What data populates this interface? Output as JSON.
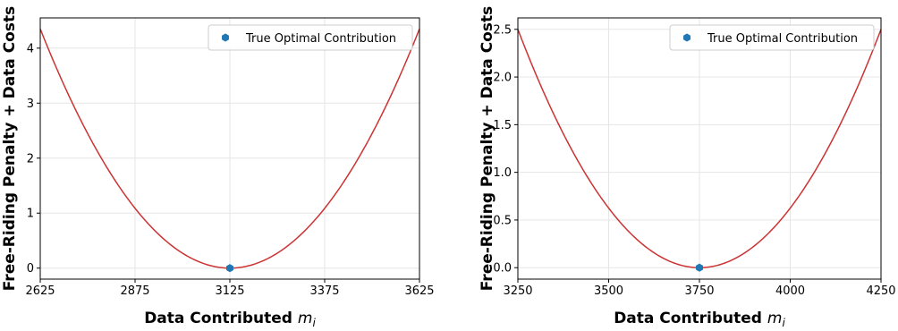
{
  "chart_data": [
    {
      "type": "line",
      "xlabel": "Data Contributed",
      "xlabel_math": "m",
      "xlabel_sub": "i",
      "ylabel": "Free-Riding Penalty + Data Costs",
      "xlim": [
        2625,
        3625
      ],
      "ylim": [
        -0.2,
        4.55
      ],
      "xticks": [
        2625,
        2875,
        3125,
        3375,
        3625
      ],
      "yticks": [
        0,
        1,
        2,
        3,
        4
      ],
      "ytick_labels": [
        "0",
        "1",
        "2",
        "3",
        "4"
      ],
      "grid": true,
      "legend_placement": "top-right",
      "series": [
        {
          "kind": "curve",
          "color": "#cc3333",
          "vertex_x": 3125,
          "vertex_y": 0,
          "endpoint_y": 4.35
        },
        {
          "kind": "point",
          "name": "True Optimal Contribution",
          "x": 3125,
          "y": 0,
          "color": "#1f77b4",
          "marker": "hexagon-icon"
        }
      ]
    },
    {
      "type": "line",
      "xlabel": "Data Contributed",
      "xlabel_math": "m",
      "xlabel_sub": "i",
      "ylabel": "Free-Riding Penalty + Data Costs",
      "xlim": [
        3250,
        4250
      ],
      "ylim": [
        -0.12,
        2.62
      ],
      "xticks": [
        3250,
        3500,
        3750,
        4000,
        4250
      ],
      "yticks": [
        0,
        0.5,
        1,
        1.5,
        2,
        2.5
      ],
      "ytick_labels": [
        "0.0",
        "0.5",
        "1.0",
        "1.5",
        "2.0",
        "2.5"
      ],
      "grid": true,
      "legend_placement": "top-right",
      "series": [
        {
          "kind": "curve",
          "color": "#cc3333",
          "vertex_x": 3750,
          "vertex_y": 0,
          "endpoint_y": 2.5
        },
        {
          "kind": "point",
          "name": "True Optimal Contribution",
          "x": 3750,
          "y": 0,
          "color": "#1f77b4",
          "marker": "hexagon-icon"
        }
      ]
    }
  ]
}
